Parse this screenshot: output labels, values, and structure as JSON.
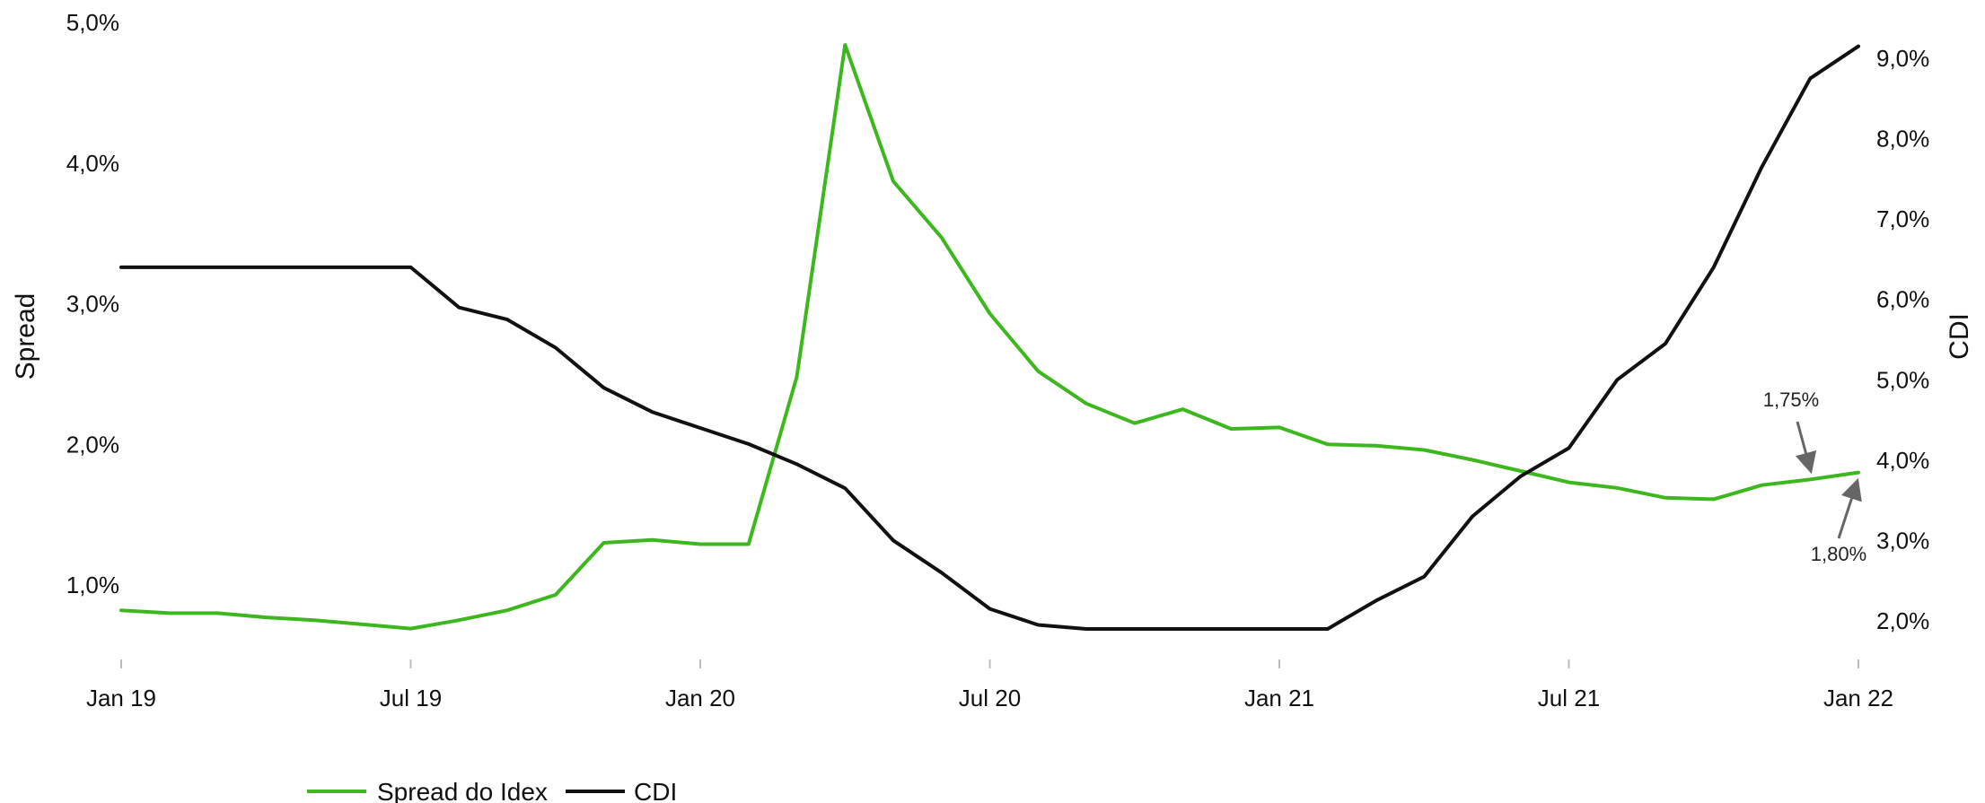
{
  "chart_data": {
    "type": "line",
    "xlabel": "",
    "x_ticks": [
      "Jan 19",
      "Jul 19",
      "Jan 20",
      "Jul 20",
      "Jan 21",
      "Jul 21",
      "Jan 22"
    ],
    "x": [
      "2019-01",
      "2019-02",
      "2019-03",
      "2019-04",
      "2019-05",
      "2019-06",
      "2019-07",
      "2019-08",
      "2019-09",
      "2019-10",
      "2019-11",
      "2019-12",
      "2020-01",
      "2020-02",
      "2020-03",
      "2020-04",
      "2020-05",
      "2020-06",
      "2020-07",
      "2020-08",
      "2020-09",
      "2020-10",
      "2020-11",
      "2020-12",
      "2021-01",
      "2021-02",
      "2021-03",
      "2021-04",
      "2021-05",
      "2021-06",
      "2021-07",
      "2021-08",
      "2021-09",
      "2021-10",
      "2021-11",
      "2021-12",
      "2022-01"
    ],
    "left_axis": {
      "label": "Spread",
      "ylim": [
        0.55,
        5.0
      ],
      "ticks": [
        1.0,
        2.0,
        3.0,
        4.0,
        5.0
      ],
      "tick_labels": [
        "1,0%",
        "2,0%",
        "3,0%",
        "4,0%",
        "5,0%"
      ]
    },
    "right_axis": {
      "label": "CDI",
      "ylim": [
        1.8,
        9.3
      ],
      "ticks": [
        2.0,
        3.0,
        4.0,
        5.0,
        6.0,
        7.0,
        8.0,
        9.0
      ],
      "tick_labels": [
        "2,0%",
        "3,0%",
        "4,0%",
        "5,0%",
        "6,0%",
        "7,0%",
        "8,0%",
        "9,0%"
      ]
    },
    "series": [
      {
        "name": "Spread do Idex",
        "axis": "left",
        "color": "#3cb81e",
        "values": [
          0.82,
          0.8,
          0.8,
          0.77,
          0.75,
          0.72,
          0.69,
          0.75,
          0.82,
          0.93,
          1.3,
          1.32,
          1.29,
          1.29,
          2.48,
          4.84,
          3.87,
          3.47,
          2.93,
          2.52,
          2.29,
          2.15,
          2.25,
          2.11,
          2.12,
          2.0,
          1.99,
          1.96,
          1.89,
          1.81,
          1.73,
          1.69,
          1.62,
          1.61,
          1.71,
          1.75,
          1.8
        ]
      },
      {
        "name": "CDI",
        "axis": "right",
        "color": "#111111",
        "values": [
          6.4,
          6.4,
          6.4,
          6.4,
          6.4,
          6.4,
          6.4,
          5.9,
          5.75,
          5.4,
          4.9,
          4.6,
          4.4,
          4.2,
          3.95,
          3.65,
          3.0,
          2.6,
          2.15,
          1.95,
          1.9,
          1.9,
          1.9,
          1.9,
          1.9,
          1.9,
          2.25,
          2.55,
          3.3,
          3.8,
          4.15,
          5.0,
          5.45,
          6.4,
          7.65,
          8.75,
          9.15
        ]
      }
    ],
    "annotations": [
      {
        "text": "1,75%",
        "x": "2021-12",
        "y": 1.75,
        "axis": "left"
      },
      {
        "text": "1,80%",
        "x": "2022-01",
        "y": 1.8,
        "axis": "left"
      }
    ],
    "legend": {
      "position": "bottom-left"
    },
    "grid": false
  }
}
